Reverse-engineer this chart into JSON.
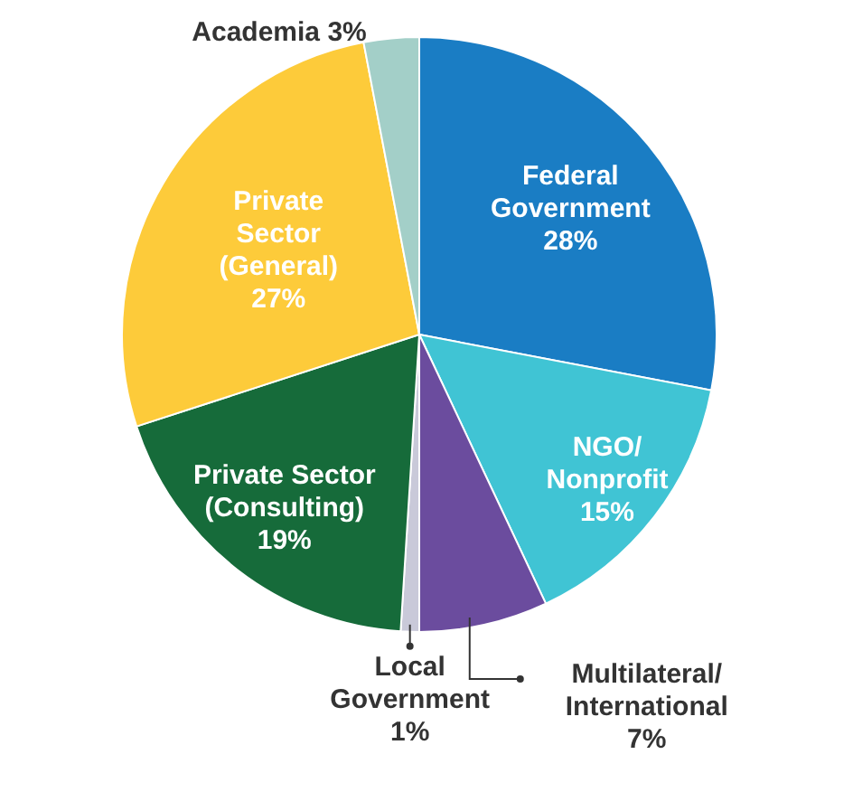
{
  "chart_data": {
    "type": "pie",
    "categories": [
      "Federal Government",
      "NGO/Nonprofit",
      "Multilateral/International",
      "Local Government",
      "Private Sector (Consulting)",
      "Private Sector (General)",
      "Academia"
    ],
    "values": [
      28,
      15,
      7,
      1,
      19,
      27,
      3
    ],
    "value_labels": [
      "28%",
      "15%",
      "7%",
      "1%",
      "19%",
      "27%",
      "3%"
    ],
    "colors": [
      "#1a7dc4",
      "#40c4d4",
      "#6b4c9e",
      "#c9c9d9",
      "#166b3a",
      "#fdcb3a",
      "#a3cfc8"
    ],
    "legend": false
  }
}
